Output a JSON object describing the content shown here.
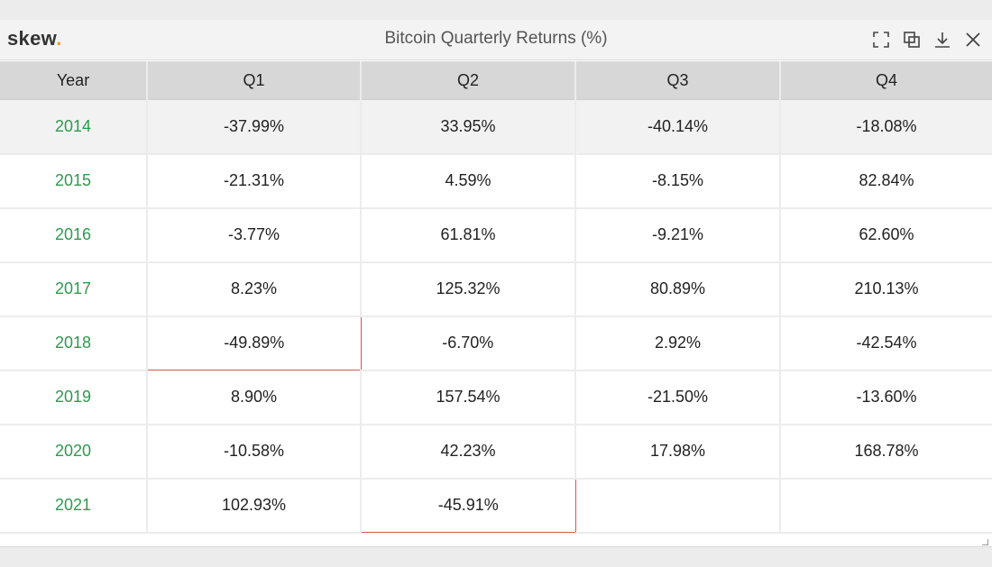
{
  "widget": {
    "logo_text": "skew",
    "logo_dot": ".",
    "title": "Bitcoin Quarterly Returns (%)",
    "icons": [
      "fullscreen-icon",
      "duplicate-icon",
      "download-icon",
      "close-icon"
    ]
  },
  "colors": {
    "year_text": "#2e9a4e",
    "logo_dot": "#f0a020",
    "highlight_border": "#d9534f",
    "header_bg": "#d7d7d7"
  },
  "table": {
    "headers": [
      "Year",
      "Q1",
      "Q2",
      "Q3",
      "Q4"
    ],
    "rows": [
      [
        "2014",
        "-37.99%",
        "33.95%",
        "-40.14%",
        "-18.08%"
      ],
      [
        "2015",
        "-21.31%",
        "4.59%",
        "-8.15%",
        "82.84%"
      ],
      [
        "2016",
        "-3.77%",
        "61.81%",
        "-9.21%",
        "62.60%"
      ],
      [
        "2017",
        "8.23%",
        "125.32%",
        "80.89%",
        "210.13%"
      ],
      [
        "2018",
        "-49.89%",
        "-6.70%",
        "2.92%",
        "-42.54%"
      ],
      [
        "2019",
        "8.90%",
        "157.54%",
        "-21.50%",
        "-13.60%"
      ],
      [
        "2020",
        "-10.58%",
        "42.23%",
        "17.98%",
        "168.78%"
      ],
      [
        "2021",
        "102.93%",
        "-45.91%",
        "",
        ""
      ]
    ],
    "highlighted_cells": [
      {
        "year": "2018",
        "quarter": "Q1"
      },
      {
        "year": "2021",
        "quarter": "Q2"
      }
    ]
  }
}
